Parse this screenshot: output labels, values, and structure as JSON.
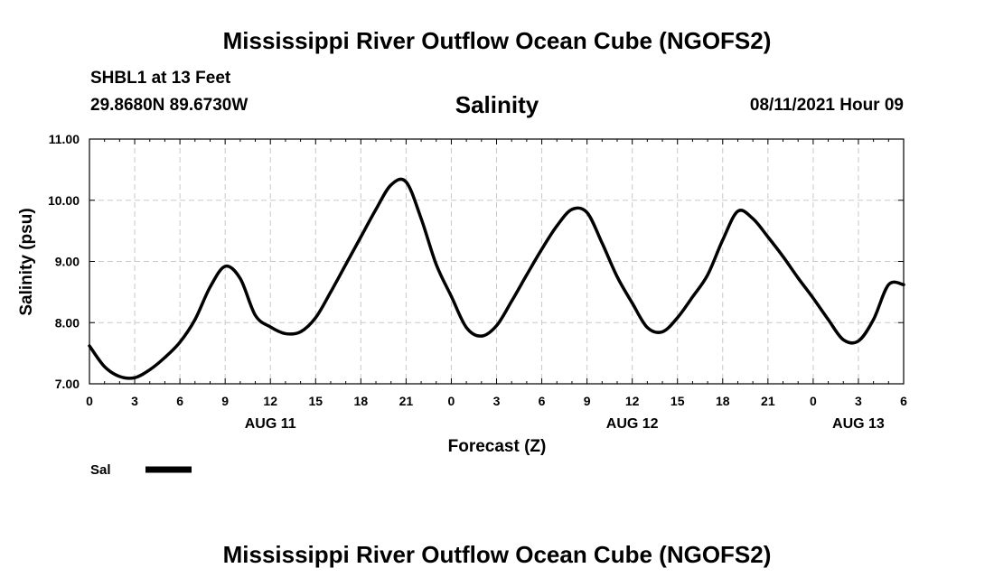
{
  "header": {
    "title": "Mississippi River Outflow Ocean Cube (NGOFS2)",
    "station": "SHBL1 at 13 Feet",
    "coords": "29.8680N  89.6730W",
    "variable": "Salinity",
    "datetime": "08/11/2021 Hour 09"
  },
  "footer": {
    "title": "Mississippi River Outflow Ocean Cube (NGOFS2)"
  },
  "chart_data": {
    "type": "line",
    "title": "Salinity",
    "xlabel": "Forecast (Z)",
    "ylabel": "Salinity (psu)",
    "xlim": [
      0,
      54
    ],
    "ylim": [
      7.0,
      11.0
    ],
    "grid": true,
    "x_ticks": [
      {
        "v": 0,
        "label": "0"
      },
      {
        "v": 3,
        "label": "3"
      },
      {
        "v": 6,
        "label": "6"
      },
      {
        "v": 9,
        "label": "9"
      },
      {
        "v": 12,
        "label": "12"
      },
      {
        "v": 15,
        "label": "15"
      },
      {
        "v": 18,
        "label": "18"
      },
      {
        "v": 21,
        "label": "21"
      },
      {
        "v": 24,
        "label": "0"
      },
      {
        "v": 27,
        "label": "3"
      },
      {
        "v": 30,
        "label": "6"
      },
      {
        "v": 33,
        "label": "9"
      },
      {
        "v": 36,
        "label": "12"
      },
      {
        "v": 39,
        "label": "15"
      },
      {
        "v": 42,
        "label": "18"
      },
      {
        "v": 45,
        "label": "21"
      },
      {
        "v": 48,
        "label": "0"
      },
      {
        "v": 51,
        "label": "3"
      },
      {
        "v": 54,
        "label": "6"
      }
    ],
    "y_ticks": [
      {
        "v": 7.0,
        "label": "7.00"
      },
      {
        "v": 8.0,
        "label": "8.00"
      },
      {
        "v": 9.0,
        "label": "9.00"
      },
      {
        "v": 10.0,
        "label": "10.00"
      },
      {
        "v": 11.0,
        "label": "11.00"
      }
    ],
    "date_labels": [
      {
        "v": 12,
        "label": "AUG 11"
      },
      {
        "v": 36,
        "label": "AUG 12"
      },
      {
        "v": 51,
        "label": "AUG 13"
      }
    ],
    "legend": {
      "label": "Sal",
      "placement": "bottom-left"
    },
    "series": [
      {
        "name": "Sal",
        "x": [
          0,
          1,
          2,
          3,
          4,
          5,
          6,
          7,
          8,
          9,
          10,
          11,
          12,
          13,
          14,
          15,
          16,
          17,
          18,
          19,
          20,
          21,
          22,
          23,
          24,
          25,
          26,
          27,
          28,
          29,
          30,
          31,
          32,
          33,
          34,
          35,
          36,
          37,
          38,
          39,
          40,
          41,
          42,
          43,
          44,
          45,
          46,
          47,
          48,
          49,
          50,
          51,
          52,
          53,
          54
        ],
        "y": [
          7.62,
          7.28,
          7.12,
          7.1,
          7.23,
          7.43,
          7.68,
          8.05,
          8.58,
          8.92,
          8.72,
          8.12,
          7.93,
          7.82,
          7.85,
          8.08,
          8.5,
          8.95,
          9.4,
          9.85,
          10.25,
          10.3,
          9.7,
          8.95,
          8.43,
          7.92,
          7.78,
          7.95,
          8.35,
          8.78,
          9.2,
          9.58,
          9.85,
          9.8,
          9.3,
          8.75,
          8.32,
          7.92,
          7.85,
          8.08,
          8.42,
          8.78,
          9.35,
          9.82,
          9.7,
          9.4,
          9.08,
          8.73,
          8.4,
          8.05,
          7.72,
          7.7,
          8.05,
          8.62,
          8.62
        ]
      }
    ]
  }
}
